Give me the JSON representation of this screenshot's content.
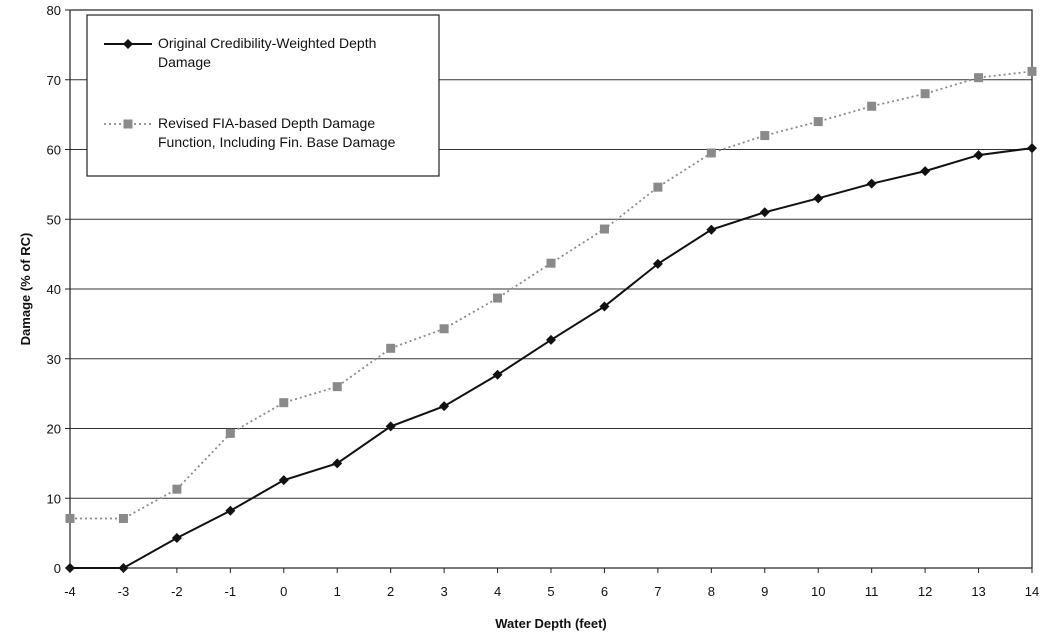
{
  "chart_data": {
    "type": "line",
    "xlabel": "Water Depth (feet)",
    "ylabel": "Damage (% of RC)",
    "x": [
      -4,
      -3,
      -2,
      -1,
      0,
      1,
      2,
      3,
      4,
      5,
      6,
      7,
      8,
      9,
      10,
      11,
      12,
      13,
      14
    ],
    "xlim": [
      -4,
      14
    ],
    "ylim": [
      0,
      80
    ],
    "yticks": [
      0,
      10,
      20,
      30,
      40,
      50,
      60,
      70,
      80
    ],
    "grid": "horizontal",
    "legend_position": "top-left",
    "series": [
      {
        "name": "Original Credibility-Weighted Depth Damage",
        "name_lines": [
          "Original Credibility-Weighted Depth",
          "Damage"
        ],
        "style": "solid",
        "marker": "diamond",
        "color": "#111111",
        "values": [
          0,
          0,
          4.3,
          8.2,
          12.6,
          15.0,
          20.3,
          23.2,
          27.7,
          32.7,
          37.5,
          43.6,
          48.5,
          51.0,
          53.0,
          55.1,
          56.9,
          59.2,
          60.2
        ]
      },
      {
        "name": "Revised FIA-based Depth Damage Function, Including Fin. Base Damage",
        "name_lines": [
          "Revised FIA-based Depth Damage",
          "Function, Including Fin. Base Damage"
        ],
        "style": "dotted",
        "marker": "square",
        "color": "#8a8a8a",
        "values": [
          7.1,
          7.1,
          11.3,
          19.3,
          23.7,
          26.0,
          31.5,
          34.3,
          38.7,
          43.7,
          48.6,
          54.6,
          59.5,
          62.0,
          64.0,
          66.2,
          68.0,
          70.3,
          71.2
        ]
      }
    ]
  }
}
